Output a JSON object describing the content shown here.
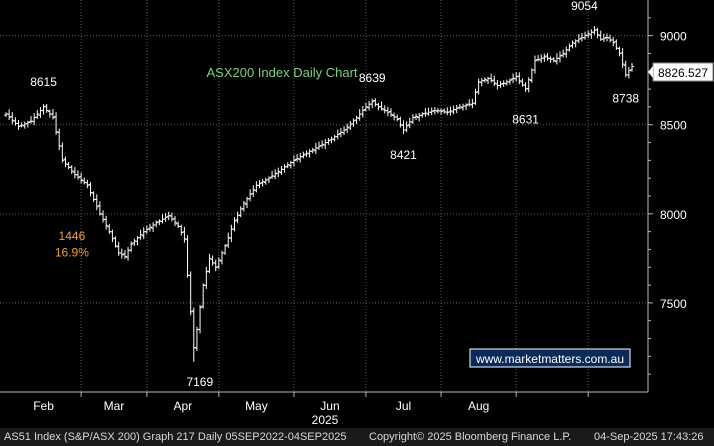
{
  "chart_data": {
    "type": "ohlc",
    "title": "ASX200 Index Daily Chart",
    "website": "www.marketmatters.com.au",
    "ylim": [
      7000,
      9200
    ],
    "y_ticks": [
      7500,
      8000,
      8500,
      9000
    ],
    "months": [
      "Feb",
      "Mar",
      "Apr",
      "May",
      "Jun",
      "Jul",
      "Aug"
    ],
    "year_label": "2025",
    "last_price_label": "8826.527",
    "last_price": 8826.527,
    "series_points": [
      {
        "d": 0,
        "v": 8560
      },
      {
        "d": 4,
        "v": 8490
      },
      {
        "d": 8,
        "v": 8520
      },
      {
        "d": 12,
        "v": 8600
      },
      {
        "d": 15,
        "v": 8540
      },
      {
        "d": 18,
        "v": 8300
      },
      {
        "d": 22,
        "v": 8220
      },
      {
        "d": 26,
        "v": 8160
      },
      {
        "d": 30,
        "v": 8000
      },
      {
        "d": 33,
        "v": 7900
      },
      {
        "d": 36,
        "v": 7780
      },
      {
        "d": 38,
        "v": 7760
      },
      {
        "d": 40,
        "v": 7830
      },
      {
        "d": 44,
        "v": 7900
      },
      {
        "d": 48,
        "v": 7950
      },
      {
        "d": 52,
        "v": 7990
      },
      {
        "d": 55,
        "v": 7930
      },
      {
        "d": 57,
        "v": 7860
      },
      {
        "d": 59,
        "v": 7450
      },
      {
        "d": 60,
        "v": 7250
      },
      {
        "d": 61,
        "v": 7350
      },
      {
        "d": 63,
        "v": 7600
      },
      {
        "d": 65,
        "v": 7750
      },
      {
        "d": 67,
        "v": 7700
      },
      {
        "d": 70,
        "v": 7820
      },
      {
        "d": 73,
        "v": 7960
      },
      {
        "d": 76,
        "v": 8060
      },
      {
        "d": 80,
        "v": 8160
      },
      {
        "d": 84,
        "v": 8200
      },
      {
        "d": 88,
        "v": 8250
      },
      {
        "d": 92,
        "v": 8300
      },
      {
        "d": 96,
        "v": 8340
      },
      {
        "d": 100,
        "v": 8380
      },
      {
        "d": 104,
        "v": 8420
      },
      {
        "d": 108,
        "v": 8470
      },
      {
        "d": 112,
        "v": 8540
      },
      {
        "d": 115,
        "v": 8600
      },
      {
        "d": 117,
        "v": 8630
      },
      {
        "d": 119,
        "v": 8600
      },
      {
        "d": 122,
        "v": 8570
      },
      {
        "d": 125,
        "v": 8530
      },
      {
        "d": 127,
        "v": 8470
      },
      {
        "d": 130,
        "v": 8540
      },
      {
        "d": 133,
        "v": 8560
      },
      {
        "d": 137,
        "v": 8580
      },
      {
        "d": 141,
        "v": 8570
      },
      {
        "d": 145,
        "v": 8600
      },
      {
        "d": 149,
        "v": 8620
      },
      {
        "d": 151,
        "v": 8740
      },
      {
        "d": 154,
        "v": 8760
      },
      {
        "d": 157,
        "v": 8720
      },
      {
        "d": 160,
        "v": 8740
      },
      {
        "d": 163,
        "v": 8770
      },
      {
        "d": 166,
        "v": 8700
      },
      {
        "d": 169,
        "v": 8860
      },
      {
        "d": 172,
        "v": 8880
      },
      {
        "d": 175,
        "v": 8860
      },
      {
        "d": 178,
        "v": 8900
      },
      {
        "d": 181,
        "v": 8960
      },
      {
        "d": 184,
        "v": 8990
      },
      {
        "d": 186,
        "v": 9010
      },
      {
        "d": 188,
        "v": 9030
      },
      {
        "d": 190,
        "v": 8980
      },
      {
        "d": 192,
        "v": 8990
      },
      {
        "d": 194,
        "v": 8960
      },
      {
        "d": 196,
        "v": 8900
      },
      {
        "d": 198,
        "v": 8780
      },
      {
        "d": 200,
        "v": 8827
      }
    ],
    "annotations": [
      {
        "text": "8615",
        "d": 12,
        "v": 8615,
        "color": "#ffffff"
      },
      {
        "text": "8639",
        "d": 117,
        "v": 8639,
        "color": "#ffffff"
      },
      {
        "text": "8421",
        "d": 127,
        "v": 8421,
        "color": "#ffffff"
      },
      {
        "text": "8631",
        "d": 166,
        "v": 8631,
        "color": "#ffffff"
      },
      {
        "text": "9054",
        "d": 188,
        "v": 9054,
        "color": "#ffffff"
      },
      {
        "text": "8738",
        "d": 198,
        "v": 8738,
        "color": "#ffffff"
      },
      {
        "text": "7169",
        "d": 60,
        "v": 7169,
        "color": "#ffffff"
      },
      {
        "text": "1446",
        "d": 30,
        "v": 7920,
        "color": "#f0a030"
      },
      {
        "text": "16.9%",
        "d": 30,
        "v": 7840,
        "color": "#f0a030"
      }
    ],
    "colors": {
      "background": "#000000",
      "price": "#ffffff",
      "grid": "#505050",
      "title": "#7fd07f",
      "annotation_pct": "#f0a030",
      "website_bg": "#0a2a5a",
      "website_text": "#ffffff"
    }
  },
  "footer": {
    "left": "AS51 Index (S&P/ASX 200) Graph 217  Daily 05SEP2022-04SEP2025",
    "middle": "Copyright© 2025 Bloomberg Finance L.P.",
    "right": "04-Sep-2025 17:43:26"
  }
}
